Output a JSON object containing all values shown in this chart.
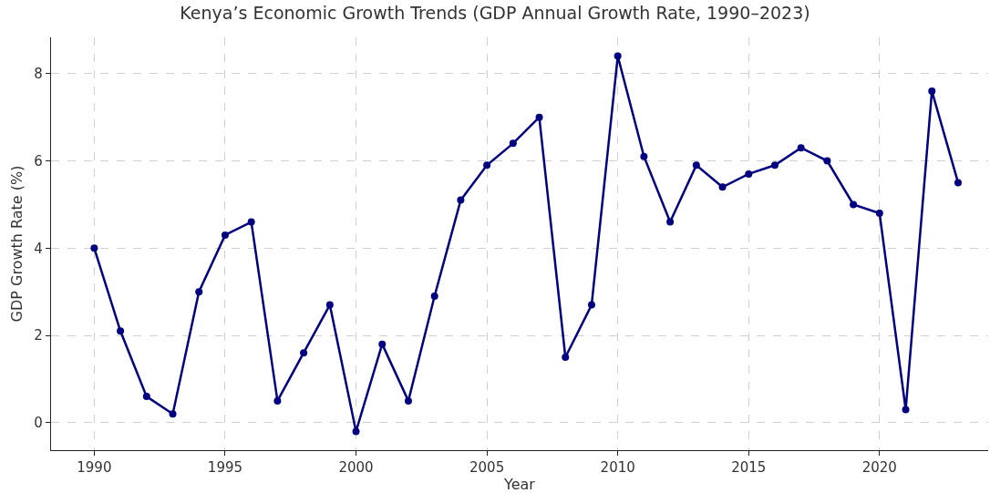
{
  "chart_data": {
    "type": "line",
    "title": "Kenya’s Economic Growth Trends (GDP Annual Growth Rate, 1990–2023)",
    "xlabel": "Year",
    "ylabel": "GDP Growth Rate (%)",
    "x": [
      1990,
      1991,
      1992,
      1993,
      1994,
      1995,
      1996,
      1997,
      1998,
      1999,
      2000,
      2001,
      2002,
      2003,
      2004,
      2005,
      2006,
      2007,
      2008,
      2009,
      2010,
      2011,
      2012,
      2013,
      2014,
      2015,
      2016,
      2017,
      2018,
      2019,
      2020,
      2021,
      2022,
      2023
    ],
    "series": [
      {
        "color": "#000080",
        "values": [
          4.0,
          2.1,
          0.6,
          0.2,
          3.0,
          4.3,
          4.6,
          0.5,
          1.6,
          2.7,
          -0.2,
          1.8,
          0.5,
          2.9,
          5.1,
          5.9,
          6.4,
          7.0,
          1.5,
          2.7,
          8.4,
          6.1,
          4.6,
          5.9,
          5.4,
          5.7,
          5.9,
          6.3,
          6.0,
          5.0,
          4.8,
          0.3,
          7.6,
          5.5
        ]
      }
    ],
    "xlim": [
      1988.35,
      2024.15
    ],
    "xticks": [
      1990,
      1995,
      2000,
      2005,
      2010,
      2015,
      2020
    ],
    "ylim": [
      -0.63,
      8.83
    ],
    "yticks": [
      0,
      2,
      4,
      6,
      8
    ],
    "grid": true,
    "marker": "circle",
    "line_style": "solid"
  }
}
